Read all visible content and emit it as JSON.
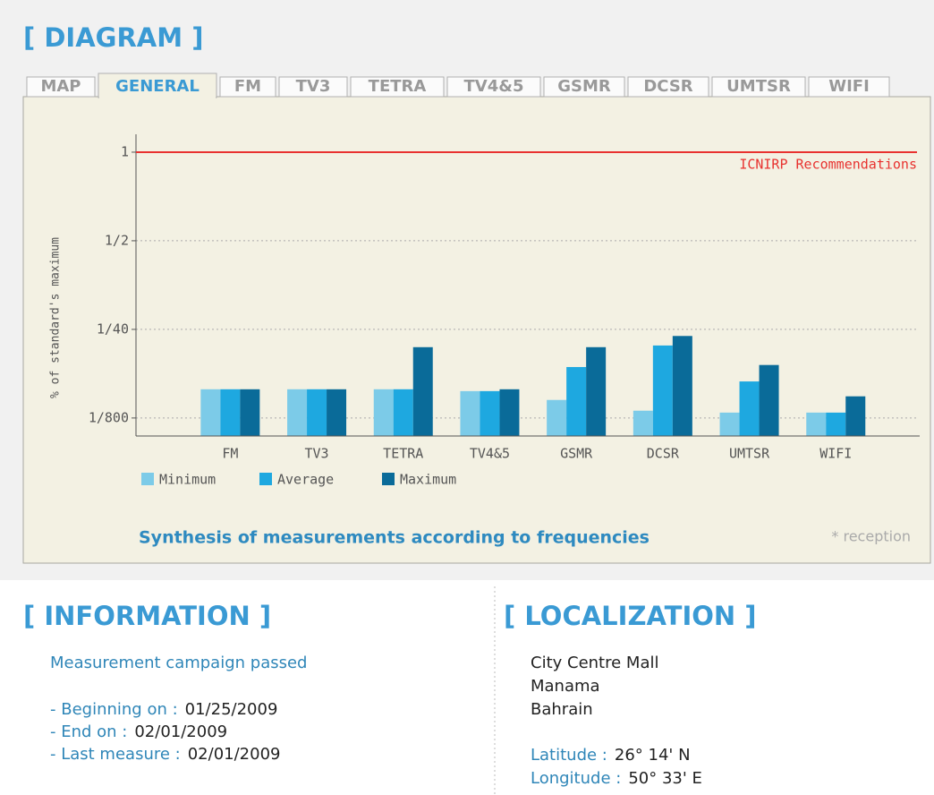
{
  "header": {
    "title": "[ DIAGRAM ]"
  },
  "tabs": [
    "MAP",
    "GENERAL",
    "FM",
    "TV3",
    "TETRA",
    "TV4&5",
    "GSMR",
    "DCSR",
    "UMTSR",
    "WIFI"
  ],
  "active_tab": "GENERAL",
  "chart_data": {
    "type": "bar",
    "y_label": "% of standard's maximum",
    "categories": [
      "FM",
      "TV3",
      "TETRA",
      "TV4&5",
      "GSMR",
      "DCSR",
      "UMTSR",
      "WIFI"
    ],
    "series": [
      {
        "name": "Minimum",
        "color": "#7ccbe8",
        "values": [
          0.0033,
          0.0033,
          0.0033,
          0.0031,
          0.0023,
          0.0016,
          0.0015,
          0.0015
        ]
      },
      {
        "name": "Average",
        "color": "#1ea8e0",
        "values": [
          0.0033,
          0.0033,
          0.0033,
          0.0031,
          0.007,
          0.0145,
          0.0043,
          0.0015
        ]
      },
      {
        "name": "Maximum",
        "color": "#0a6b99",
        "values": [
          0.0033,
          0.0033,
          0.0137,
          0.0033,
          0.0137,
          0.02,
          0.0075,
          0.0026
        ]
      }
    ],
    "ylim": [
      0.00068,
      1.15
    ],
    "yticks": [
      1,
      {
        "value": 0.5,
        "label": "1/2"
      },
      {
        "value": 0.025,
        "label": "1/40"
      },
      {
        "value": 0.00125,
        "label": "1/800"
      }
    ],
    "yscale": "tick-log",
    "grid": true,
    "reference_line": {
      "value": 1,
      "label": "ICNIRP Recommendations",
      "color": "#e8322f"
    },
    "caption": "Synthesis of measurements according to frequencies",
    "note": "* reception"
  },
  "information": {
    "title": "[ INFORMATION ]",
    "heading": "Measurement campaign passed",
    "items": [
      {
        "label": "- Beginning on :",
        "value": "01/25/2009"
      },
      {
        "label": "- End on :",
        "value": "02/01/2009"
      },
      {
        "label": "- Last measure :",
        "value": "02/01/2009"
      }
    ]
  },
  "localization": {
    "title": "[ LOCALIZATION ]",
    "address": [
      "City Centre Mall",
      "Manama",
      "Bahrain"
    ],
    "coords": [
      {
        "label": "Latitude :",
        "value": "26° 14' N"
      },
      {
        "label": "Longitude :",
        "value": "50° 33' E"
      }
    ]
  }
}
